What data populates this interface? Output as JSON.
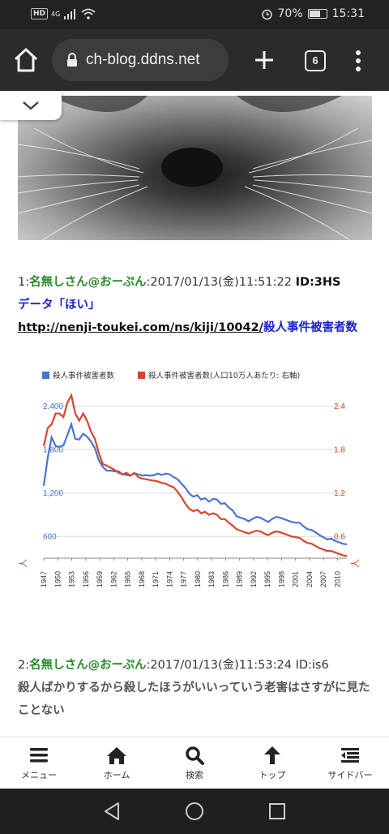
{
  "status": {
    "time": "15:31",
    "battery": "70%",
    "battery_level": 0.7,
    "hd": "HD",
    "network": "4G"
  },
  "browser": {
    "url": "ch-blog.ddns.net",
    "tab_count": "6"
  },
  "posts": [
    {
      "num": "1:",
      "name": "名無しさん@おーぷん",
      "meta": ":2017/01/13(金)11:51:22",
      "id": "ID:3HS",
      "line1": "データ「ほい」",
      "link": "http://nenji-toukei.com/ns/kiji/10042/",
      "link_title": "殺人事件被害者数"
    },
    {
      "num": "2:",
      "name": "名無しさん@おーぷん",
      "meta": ":2017/01/13(金)11:53:24",
      "id": "ID:is6",
      "text": "殺人ばかりするから殺したほうがいいっていう老害はさすがに見たことない"
    }
  ],
  "chart_data": {
    "type": "line",
    "legend_position": "top-left",
    "series": [
      {
        "name": "殺人事件被害者数",
        "axis": "left",
        "color": "#4a74d1",
        "values": [
          1300,
          1690,
          1970,
          1850,
          1840,
          1860,
          2000,
          2150,
          1950,
          1940,
          2020,
          1980,
          1910,
          1820,
          1650,
          1560,
          1510,
          1510,
          1500,
          1500,
          1460,
          1450,
          1440,
          1470,
          1460,
          1440,
          1450,
          1440,
          1450,
          1470,
          1450,
          1470,
          1460,
          1420,
          1390,
          1330,
          1270,
          1190,
          1150,
          1170,
          1110,
          1130,
          1080,
          1120,
          1110,
          1050,
          1060,
          1000,
          960,
          880,
          860,
          840,
          810,
          840,
          870,
          860,
          830,
          800,
          840,
          870,
          860,
          840,
          820,
          800,
          790,
          790,
          740,
          700,
          690,
          660,
          620,
          590,
          560,
          570,
          540,
          520,
          500,
          490
        ]
      },
      {
        "name": "殺人事件被害者数(人口10万人あたり: 右軸)",
        "axis": "right",
        "color": "#d9452d",
        "values": [
          1.85,
          2.1,
          2.15,
          2.3,
          2.3,
          2.25,
          2.45,
          2.55,
          2.3,
          2.2,
          2.3,
          2.2,
          2.05,
          1.95,
          1.75,
          1.6,
          1.58,
          1.55,
          1.52,
          1.48,
          1.46,
          1.48,
          1.44,
          1.48,
          1.42,
          1.4,
          1.39,
          1.38,
          1.37,
          1.36,
          1.34,
          1.33,
          1.3,
          1.28,
          1.22,
          1.14,
          1.05,
          0.98,
          0.95,
          0.97,
          0.92,
          0.94,
          0.9,
          0.92,
          0.9,
          0.84,
          0.84,
          0.79,
          0.75,
          0.7,
          0.68,
          0.66,
          0.64,
          0.66,
          0.68,
          0.67,
          0.64,
          0.62,
          0.65,
          0.67,
          0.66,
          0.64,
          0.62,
          0.6,
          0.59,
          0.58,
          0.54,
          0.51,
          0.5,
          0.47,
          0.44,
          0.42,
          0.4,
          0.4,
          0.38,
          0.36,
          0.34,
          0.33
        ]
      }
    ],
    "x_start": 1947,
    "x_end": 2012,
    "x_ticks": [
      "1947",
      "1950",
      "1953",
      "1956",
      "1959",
      "1962",
      "1965",
      "1968",
      "1971",
      "1974",
      "1977",
      "1980",
      "1983",
      "1986",
      "1989",
      "1992",
      "1995",
      "1998",
      "2001",
      "2004",
      "2007",
      "2010"
    ],
    "y_left_ticks": [
      "600",
      "1,200",
      "1,800",
      "2,400"
    ],
    "y_left_values": [
      600,
      1200,
      1800,
      2400
    ],
    "y_left_range": [
      300,
      2700
    ],
    "y_right_ticks": [
      "0.6",
      "1.2",
      "1.8",
      "2.4"
    ],
    "y_right_values": [
      0.6,
      1.2,
      1.8,
      2.4
    ],
    "y_right_range": [
      0.3,
      2.7
    ],
    "y_left_label": "人",
    "y_right_label": "人",
    "grid": true
  },
  "nav": {
    "items": [
      {
        "label": "メニュー",
        "icon": "menu-icon"
      },
      {
        "label": "ホーム",
        "icon": "home-icon"
      },
      {
        "label": "検索",
        "icon": "search-icon"
      },
      {
        "label": "トップ",
        "icon": "arrow-up-icon"
      },
      {
        "label": "サイドバー",
        "icon": "sidebar-icon"
      }
    ]
  }
}
